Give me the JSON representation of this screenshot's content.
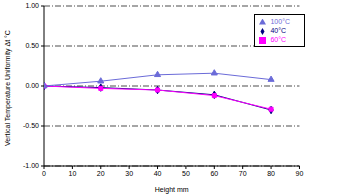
{
  "chart_data": {
    "type": "line",
    "x_label": "Height mm",
    "y_label": "Vertical Temperature Uniformity Δt °C",
    "x": [
      0,
      20,
      40,
      60,
      80
    ],
    "series": [
      {
        "name": "40°C",
        "color": "#000080",
        "marker": "diamond",
        "values": [
          0,
          -0.02,
          -0.05,
          -0.11,
          -0.3
        ]
      },
      {
        "name": "60°C",
        "color": "#ff00ff",
        "marker": "square",
        "values": [
          0,
          -0.03,
          -0.05,
          -0.12,
          -0.29
        ]
      },
      {
        "name": "100°C",
        "color": "#6b6bd8",
        "marker": "triangle",
        "values": [
          0,
          0.06,
          0.14,
          0.16,
          0.08
        ]
      }
    ],
    "xlim": [
      0,
      90
    ],
    "xticks": [
      0,
      10,
      20,
      30,
      40,
      50,
      60,
      70,
      80,
      90
    ],
    "ylim": [
      -1,
      1
    ],
    "yticks": [
      {
        "value": -1,
        "label": "-1.00"
      },
      {
        "value": -0.5,
        "label": "-0.50"
      },
      {
        "value": 0,
        "label": "0.00"
      },
      {
        "value": 0.5,
        "label": "0.50"
      },
      {
        "value": 1,
        "label": "1.00"
      }
    ],
    "grid": true,
    "legend": "upper right"
  }
}
